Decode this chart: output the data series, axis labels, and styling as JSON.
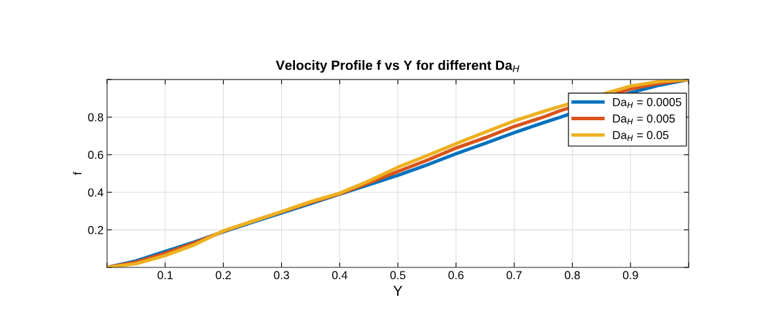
{
  "chart_data": {
    "type": "line",
    "title": "Velocity Profile f vs Y for different Da$_{H}$",
    "xlabel": "Y",
    "ylabel": "f",
    "x": [
      0,
      0.05,
      0.1,
      0.15,
      0.2,
      0.25,
      0.3,
      0.35,
      0.4,
      0.45,
      0.5,
      0.55,
      0.6,
      0.65,
      0.7,
      0.75,
      0.78,
      0.9,
      0.95,
      1
    ],
    "series": [
      {
        "name": "Da$_{H}$ = 0.0005",
        "color": "#0072bd",
        "values": [
          0,
          0.035,
          0.085,
          0.135,
          0.19,
          0.24,
          0.29,
          0.34,
          0.39,
          0.44,
          0.49,
          0.545,
          0.605,
          0.66,
          0.717,
          0.77,
          0.8,
          0.93,
          0.97,
          1
        ]
      },
      {
        "name": "Da$_{H}$ = 0.005",
        "color": "#d95319",
        "values": [
          0,
          0.028,
          0.075,
          0.13,
          0.192,
          0.245,
          0.295,
          0.345,
          0.392,
          0.45,
          0.51,
          0.57,
          0.635,
          0.69,
          0.75,
          0.8,
          0.835,
          0.95,
          0.98,
          1
        ]
      },
      {
        "name": "Da$_{H}$ = 0.05",
        "color": "#edb120",
        "values": [
          0,
          0.02,
          0.063,
          0.12,
          0.195,
          0.245,
          0.297,
          0.35,
          0.395,
          0.46,
          0.533,
          0.595,
          0.658,
          0.72,
          0.78,
          0.83,
          0.858,
          0.965,
          0.99,
          1
        ]
      }
    ],
    "xlim": [
      0,
      1
    ],
    "ylim": [
      0,
      1
    ],
    "xticks": [
      {
        "value": 0,
        "label": null
      },
      0.1,
      0.2,
      0.3,
      0.4,
      0.5,
      0.6,
      0.7,
      0.8,
      0.9,
      {
        "value": 1,
        "label": null
      }
    ],
    "yticks": [
      {
        "value": 0,
        "label": null
      },
      0.2,
      0.4,
      0.6,
      0.8,
      {
        "value": 1,
        "label": null
      }
    ],
    "grid": true,
    "legend": "top right",
    "line_style": "solid",
    "marker": "none"
  }
}
